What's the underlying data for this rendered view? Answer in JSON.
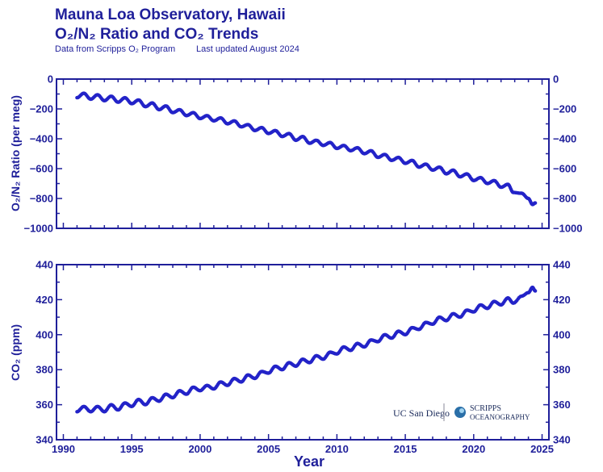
{
  "header": {
    "title_line1": "Mauna Loa Observatory, Hawaii",
    "title_line2": "O₂/N₂ Ratio and CO₂ Trends",
    "subtitle_left": "Data from Scripps O₂ Program",
    "subtitle_right": "Last updated August 2024"
  },
  "logos": {
    "ucsd": "UC San Diego",
    "scripps_line1": "SCRIPPS",
    "scripps_line2": "OCEANOGRAPHY"
  },
  "colors": {
    "text": "#1f1f9a",
    "points": "#2323c8"
  },
  "chart_data": [
    {
      "type": "scatter",
      "ylabel": "O₂/N₂ Ratio (per meg)",
      "xlabel": "",
      "xlim": [
        1989.5,
        2025.5
      ],
      "ylim": [
        -1000,
        0
      ],
      "xticks": [
        1990,
        1995,
        2000,
        2005,
        2010,
        2015,
        2020,
        2025
      ],
      "yticks": [
        0,
        -200,
        -400,
        -600,
        -800,
        -1000
      ],
      "grid": false,
      "series": [
        {
          "x": [
            1991.0,
            1991.5,
            1992.0,
            1992.5,
            1993.0,
            1993.5,
            1994.0,
            1994.5,
            1995.0,
            1995.5,
            1996.0,
            1996.5,
            1997.0,
            1997.5,
            1998.0,
            1998.5,
            1999.0,
            1999.5,
            2000.0,
            2000.5,
            2001.0,
            2001.5,
            2002.0,
            2002.5,
            2003.0,
            2003.5,
            2004.0,
            2004.5,
            2005.0,
            2005.5,
            2006.0,
            2006.5,
            2007.0,
            2007.5,
            2008.0,
            2008.5,
            2009.0,
            2009.5,
            2010.0,
            2010.5,
            2011.0,
            2011.5,
            2012.0,
            2012.5,
            2013.0,
            2013.5,
            2014.0,
            2014.5,
            2015.0,
            2015.5,
            2016.0,
            2016.5,
            2017.0,
            2017.5,
            2018.0,
            2018.5,
            2019.0,
            2019.5,
            2020.0,
            2020.5,
            2021.0,
            2021.5,
            2022.0,
            2022.5,
            2022.9,
            2023.5,
            2024.0,
            2024.3,
            2024.5
          ],
          "y": [
            -125,
            -95,
            -135,
            -105,
            -145,
            -115,
            -155,
            -125,
            -165,
            -140,
            -185,
            -160,
            -205,
            -180,
            -225,
            -205,
            -245,
            -225,
            -265,
            -245,
            -280,
            -260,
            -300,
            -280,
            -320,
            -305,
            -345,
            -325,
            -365,
            -345,
            -385,
            -365,
            -410,
            -385,
            -430,
            -410,
            -445,
            -425,
            -465,
            -445,
            -480,
            -460,
            -500,
            -480,
            -525,
            -505,
            -545,
            -525,
            -565,
            -545,
            -590,
            -570,
            -610,
            -590,
            -635,
            -610,
            -655,
            -635,
            -680,
            -660,
            -700,
            -680,
            -725,
            -705,
            -760,
            -765,
            -800,
            -840,
            -830
          ]
        }
      ]
    },
    {
      "type": "scatter",
      "ylabel": "CO₂ (ppm)",
      "xlabel": "Year",
      "xlim": [
        1989.5,
        2025.5
      ],
      "ylim": [
        340,
        440
      ],
      "xticks": [
        1990,
        1995,
        2000,
        2005,
        2010,
        2015,
        2020,
        2025
      ],
      "yticks": [
        340,
        360,
        380,
        400,
        420,
        440
      ],
      "grid": false,
      "series": [
        {
          "x": [
            1991.0,
            1991.5,
            1992.0,
            1992.5,
            1993.0,
            1993.5,
            1994.0,
            1994.5,
            1995.0,
            1995.5,
            1996.0,
            1996.5,
            1997.0,
            1997.5,
            1998.0,
            1998.5,
            1999.0,
            1999.5,
            2000.0,
            2000.5,
            2001.0,
            2001.5,
            2002.0,
            2002.5,
            2003.0,
            2003.5,
            2004.0,
            2004.5,
            2005.0,
            2005.5,
            2006.0,
            2006.5,
            2007.0,
            2007.5,
            2008.0,
            2008.5,
            2009.0,
            2009.5,
            2010.0,
            2010.5,
            2011.0,
            2011.5,
            2012.0,
            2012.5,
            2013.0,
            2013.5,
            2014.0,
            2014.5,
            2015.0,
            2015.5,
            2016.0,
            2016.5,
            2017.0,
            2017.5,
            2018.0,
            2018.5,
            2019.0,
            2019.5,
            2020.0,
            2020.5,
            2021.0,
            2021.5,
            2022.0,
            2022.5,
            2022.9,
            2023.5,
            2024.0,
            2024.3,
            2024.5
          ],
          "y": [
            356,
            359,
            356,
            359,
            356,
            360,
            357,
            361,
            359,
            363,
            360,
            364,
            362,
            366,
            364,
            368,
            366,
            370,
            368,
            371,
            369,
            373,
            371,
            375,
            373,
            377,
            375,
            379,
            378,
            382,
            380,
            384,
            382,
            386,
            384,
            388,
            386,
            390,
            389,
            393,
            391,
            395,
            393,
            397,
            396,
            400,
            398,
            402,
            400,
            404,
            403,
            407,
            406,
            410,
            408,
            412,
            410,
            414,
            413,
            417,
            415,
            419,
            417,
            421,
            418,
            422,
            424,
            427,
            425
          ]
        }
      ]
    }
  ]
}
